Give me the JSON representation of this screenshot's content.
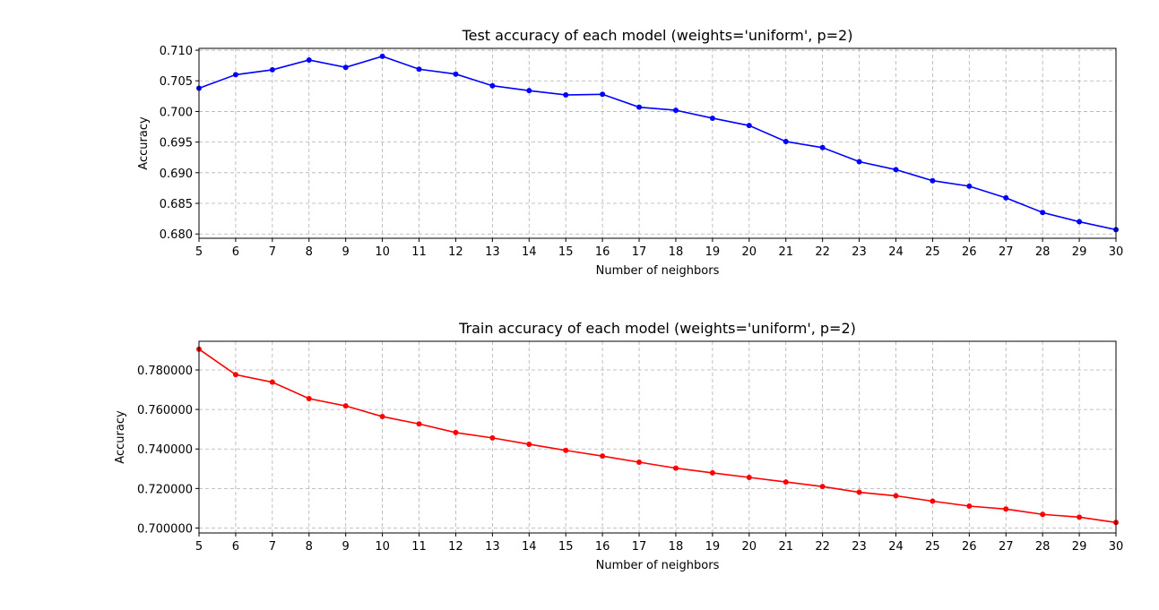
{
  "chart_data": [
    {
      "type": "line",
      "title": "Test accuracy of each model (weights='uniform', p=2)",
      "xlabel": "Number of neighbors",
      "ylabel": "Accuracy",
      "x": [
        5,
        6,
        7,
        8,
        9,
        10,
        11,
        12,
        13,
        14,
        15,
        16,
        17,
        18,
        19,
        20,
        21,
        22,
        23,
        24,
        25,
        26,
        27,
        28,
        29,
        30
      ],
      "xlim": [
        5,
        30
      ],
      "ylim": [
        0.6793,
        0.7103
      ],
      "yticks": [
        0.68,
        0.685,
        0.69,
        0.695,
        0.7,
        0.705,
        0.71
      ],
      "ytick_labels": [
        "0.680",
        "0.685",
        "0.690",
        "0.695",
        "0.700",
        "0.705",
        "0.710"
      ],
      "grid": true,
      "series": [
        {
          "color": "#0000ff",
          "values": [
            0.7038,
            0.706,
            0.7068,
            0.7084,
            0.7072,
            0.709,
            0.7069,
            0.7061,
            0.7042,
            0.7034,
            0.7027,
            0.7028,
            0.7007,
            0.7002,
            0.6989,
            0.6977,
            0.6951,
            0.6941,
            0.6918,
            0.6905,
            0.6887,
            0.6878,
            0.6859,
            0.6835,
            0.682,
            0.6807
          ]
        }
      ]
    },
    {
      "type": "line",
      "title": "Train accuracy of each model (weights='uniform', p=2)",
      "xlabel": "Number of neighbors",
      "ylabel": "Accuracy",
      "x": [
        5,
        6,
        7,
        8,
        9,
        10,
        11,
        12,
        13,
        14,
        15,
        16,
        17,
        18,
        19,
        20,
        21,
        22,
        23,
        24,
        25,
        26,
        27,
        28,
        29,
        30
      ],
      "xlim": [
        5,
        30
      ],
      "ylim": [
        0.6975,
        0.7945
      ],
      "yticks": [
        0.7,
        0.72,
        0.74,
        0.76,
        0.78
      ],
      "ytick_labels": [
        "0.700000",
        "0.720000",
        "0.740000",
        "0.760000",
        "0.780000"
      ],
      "grid": true,
      "series": [
        {
          "color": "#ff0000",
          "values": [
            0.7905,
            0.7776,
            0.7738,
            0.7655,
            0.7618,
            0.7564,
            0.7527,
            0.7483,
            0.7456,
            0.7424,
            0.7393,
            0.7364,
            0.7333,
            0.7303,
            0.7279,
            0.7256,
            0.7233,
            0.721,
            0.7181,
            0.7163,
            0.7136,
            0.7111,
            0.7096,
            0.7069,
            0.7055,
            0.7028
          ]
        }
      ]
    }
  ]
}
